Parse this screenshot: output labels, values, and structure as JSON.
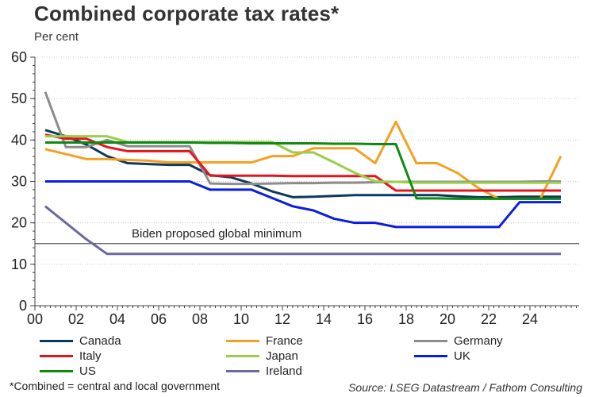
{
  "header": {
    "title": "Combined corporate tax rates*",
    "subtitle": "Per cent"
  },
  "footer": {
    "footnote": "*Combined = central and local government",
    "source": "Source: LSEG Datastream / Fathom Consulting"
  },
  "chart_data": {
    "type": "line",
    "title": "Combined corporate tax rates*",
    "ylabel": "Per cent",
    "xlabel": "",
    "ylim": [
      0,
      60
    ],
    "yticks": [
      0,
      10,
      20,
      30,
      40,
      50,
      60
    ],
    "ytick_labels": [
      "0",
      "10",
      "20",
      "30",
      "40",
      "50",
      "60"
    ],
    "xlim": [
      2000,
      2026.4
    ],
    "xticks": [
      2000,
      2002,
      2004,
      2006,
      2008,
      2010,
      2012,
      2014,
      2016,
      2018,
      2020,
      2022,
      2024
    ],
    "xtick_labels": [
      "00",
      "02",
      "04",
      "06",
      "08",
      "10",
      "12",
      "14",
      "16",
      "18",
      "20",
      "22",
      "24"
    ],
    "grid": "horizontal-dotted",
    "legend_position": "bottom",
    "x": [
      2000.5,
      2001.5,
      2002.5,
      2003.5,
      2004.5,
      2005.5,
      2006.5,
      2007.5,
      2008.5,
      2009.5,
      2010.5,
      2011.5,
      2012.5,
      2013.5,
      2014.5,
      2015.5,
      2016.5,
      2017.5,
      2018.5,
      2019.5,
      2020.5,
      2021.5,
      2022.5,
      2023.5,
      2024.5,
      2025.5
    ],
    "series": [
      {
        "name": "Canada",
        "color": "#0d3a5c",
        "values": [
          42.4,
          40.9,
          38.9,
          36.1,
          34.4,
          34.2,
          34.0,
          34.0,
          31.5,
          31.0,
          29.5,
          27.6,
          26.2,
          26.3,
          26.5,
          26.7,
          26.7,
          26.7,
          26.7,
          26.7,
          26.4,
          26.2,
          26.2,
          26.3,
          26.3,
          26.3
        ]
      },
      {
        "name": "France",
        "color": "#f5a020",
        "values": [
          37.8,
          36.6,
          35.4,
          35.4,
          35.2,
          35.0,
          34.6,
          34.6,
          34.6,
          34.6,
          34.6,
          36.1,
          36.1,
          38.0,
          38.0,
          38.0,
          34.4,
          44.4,
          34.4,
          34.4,
          32.0,
          28.4,
          25.8,
          25.8,
          25.8,
          36.1
        ]
      },
      {
        "name": "Germany",
        "color": "#8c8c8c",
        "values": [
          51.6,
          38.3,
          38.3,
          40.0,
          38.5,
          38.5,
          38.5,
          38.5,
          29.5,
          29.4,
          29.4,
          29.5,
          29.6,
          29.6,
          29.7,
          29.7,
          29.8,
          29.9,
          29.9,
          29.9,
          29.9,
          29.9,
          29.9,
          29.9,
          30.0,
          30.0
        ]
      },
      {
        "name": "Italy",
        "color": "#e8141c",
        "values": [
          41.3,
          40.3,
          40.3,
          38.3,
          37.3,
          37.3,
          37.3,
          37.3,
          31.4,
          31.4,
          31.4,
          31.4,
          31.3,
          31.3,
          31.3,
          31.3,
          31.3,
          27.8,
          27.8,
          27.8,
          27.8,
          27.8,
          27.8,
          27.8,
          27.8,
          27.8
        ]
      },
      {
        "name": "Japan",
        "color": "#9acd4a",
        "values": [
          40.9,
          40.9,
          40.9,
          40.9,
          39.5,
          39.5,
          39.5,
          39.5,
          39.5,
          39.5,
          39.5,
          39.5,
          37.0,
          37.0,
          34.6,
          32.1,
          30.0,
          29.9,
          29.7,
          29.7,
          29.7,
          29.7,
          29.7,
          29.7,
          29.7,
          29.7
        ]
      },
      {
        "name": "UK",
        "color": "#0a1ee0",
        "values": [
          30,
          30,
          30,
          30,
          30,
          30,
          30,
          30,
          28,
          28,
          28,
          26,
          24,
          23,
          21,
          20,
          20,
          19,
          19,
          19,
          19,
          19,
          19,
          25,
          25,
          25
        ]
      },
      {
        "name": "US",
        "color": "#0e8a12",
        "values": [
          39.4,
          39.4,
          39.4,
          39.4,
          39.4,
          39.4,
          39.4,
          39.4,
          39.3,
          39.3,
          39.2,
          39.2,
          39.2,
          39.2,
          39.1,
          39.1,
          39.0,
          39.0,
          25.9,
          25.9,
          25.8,
          25.8,
          25.8,
          25.8,
          25.8,
          25.8
        ]
      },
      {
        "name": "Ireland",
        "color": "#6a69a0",
        "values": [
          24,
          20,
          16,
          12.5,
          12.5,
          12.5,
          12.5,
          12.5,
          12.5,
          12.5,
          12.5,
          12.5,
          12.5,
          12.5,
          12.5,
          12.5,
          12.5,
          12.5,
          12.5,
          12.5,
          12.5,
          12.5,
          12.5,
          12.5,
          12.5,
          12.5
        ]
      }
    ],
    "draw_order": [
      "Ireland",
      "UK",
      "Canada",
      "France",
      "Germany",
      "Italy",
      "Japan",
      "US"
    ],
    "annotations": [
      {
        "type": "hline",
        "y": 15,
        "color": "#555555",
        "label": "Biden proposed global minimum"
      }
    ],
    "legend": [
      {
        "name": "Canada",
        "column": 0,
        "row": 0
      },
      {
        "name": "France",
        "column": 1,
        "row": 0
      },
      {
        "name": "Germany",
        "column": 2,
        "row": 0
      },
      {
        "name": "Italy",
        "column": 0,
        "row": 1
      },
      {
        "name": "Japan",
        "column": 1,
        "row": 1
      },
      {
        "name": "UK",
        "column": 2,
        "row": 1
      },
      {
        "name": "US",
        "column": 0,
        "row": 2
      },
      {
        "name": "Ireland",
        "column": 1,
        "row": 2
      }
    ]
  }
}
